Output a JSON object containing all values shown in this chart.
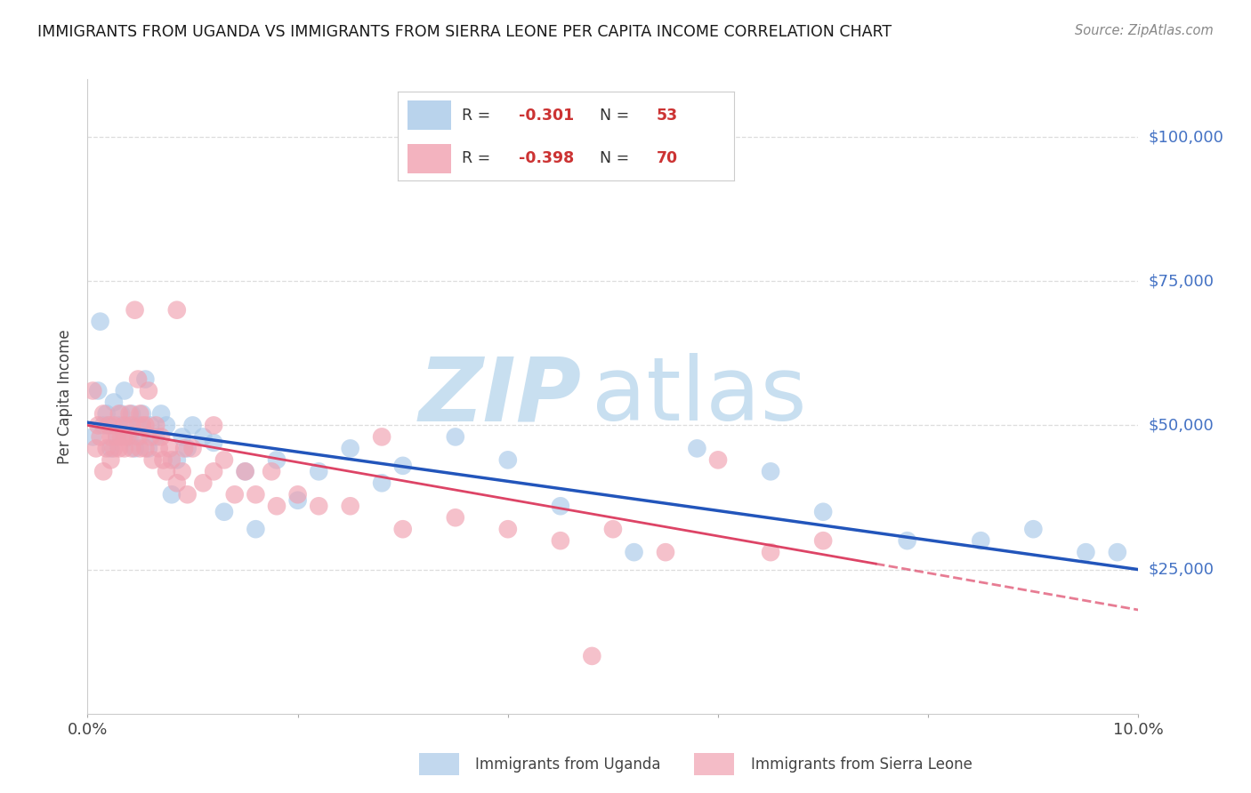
{
  "title": "IMMIGRANTS FROM UGANDA VS IMMIGRANTS FROM SIERRA LEONE PER CAPITA INCOME CORRELATION CHART",
  "source": "Source: ZipAtlas.com",
  "ylabel": "Per Capita Income",
  "y_tick_labels": [
    "$25,000",
    "$50,000",
    "$75,000",
    "$100,000"
  ],
  "y_tick_values": [
    25000,
    50000,
    75000,
    100000
  ],
  "y_axis_color": "#4472c4",
  "xlim": [
    0.0,
    10.0
  ],
  "ylim": [
    0,
    110000
  ],
  "uganda_color": "#a8c8e8",
  "sierra_color": "#f0a0b0",
  "uganda_line_color": "#2255bb",
  "sierra_line_color": "#dd4466",
  "watermark_zip_color": "#c8dff0",
  "watermark_atlas_color": "#c8dff0",
  "background_color": "#ffffff",
  "grid_color": "#dddddd",
  "uganda_x": [
    0.05,
    0.1,
    0.12,
    0.15,
    0.18,
    0.2,
    0.22,
    0.25,
    0.28,
    0.3,
    0.32,
    0.35,
    0.38,
    0.4,
    0.42,
    0.45,
    0.48,
    0.5,
    0.52,
    0.55,
    0.58,
    0.6,
    0.65,
    0.7,
    0.75,
    0.8,
    0.85,
    0.9,
    0.95,
    1.0,
    1.1,
    1.2,
    1.3,
    1.5,
    1.6,
    1.8,
    2.0,
    2.2,
    2.5,
    2.8,
    3.0,
    3.5,
    4.0,
    4.5,
    5.2,
    5.8,
    6.5,
    7.0,
    7.8,
    8.5,
    9.0,
    9.5,
    9.8
  ],
  "uganda_y": [
    48000,
    56000,
    68000,
    50000,
    52000,
    50000,
    46000,
    54000,
    48000,
    50000,
    52000,
    56000,
    50000,
    48000,
    52000,
    46000,
    50000,
    48000,
    52000,
    58000,
    46000,
    50000,
    48000,
    52000,
    50000,
    38000,
    44000,
    48000,
    46000,
    50000,
    48000,
    47000,
    35000,
    42000,
    32000,
    44000,
    37000,
    42000,
    46000,
    40000,
    43000,
    48000,
    44000,
    36000,
    28000,
    46000,
    42000,
    35000,
    30000,
    30000,
    32000,
    28000,
    28000
  ],
  "sierra_x": [
    0.05,
    0.08,
    0.1,
    0.12,
    0.15,
    0.15,
    0.18,
    0.2,
    0.22,
    0.22,
    0.25,
    0.25,
    0.28,
    0.3,
    0.3,
    0.32,
    0.35,
    0.35,
    0.38,
    0.4,
    0.42,
    0.42,
    0.45,
    0.48,
    0.5,
    0.5,
    0.52,
    0.55,
    0.55,
    0.58,
    0.6,
    0.62,
    0.65,
    0.68,
    0.7,
    0.72,
    0.75,
    0.78,
    0.8,
    0.85,
    0.9,
    0.95,
    1.0,
    1.1,
    1.2,
    1.3,
    1.4,
    1.5,
    1.6,
    1.8,
    2.0,
    2.2,
    2.5,
    3.0,
    3.5,
    4.0,
    4.5,
    5.0,
    5.5,
    6.0,
    6.5,
    7.0,
    4.8,
    2.8,
    1.2,
    0.85,
    0.92,
    0.48,
    0.35,
    1.75
  ],
  "sierra_y": [
    56000,
    46000,
    50000,
    48000,
    52000,
    42000,
    46000,
    50000,
    48000,
    44000,
    50000,
    46000,
    48000,
    52000,
    46000,
    48000,
    50000,
    46000,
    48000,
    52000,
    46000,
    50000,
    70000,
    48000,
    52000,
    46000,
    50000,
    46000,
    50000,
    56000,
    48000,
    44000,
    50000,
    46000,
    48000,
    44000,
    42000,
    46000,
    44000,
    40000,
    42000,
    38000,
    46000,
    40000,
    42000,
    44000,
    38000,
    42000,
    38000,
    36000,
    38000,
    36000,
    36000,
    32000,
    34000,
    32000,
    30000,
    32000,
    28000,
    44000,
    28000,
    30000,
    10000,
    48000,
    50000,
    70000,
    46000,
    58000,
    48000,
    42000
  ],
  "uganda_regr_x0": 0.0,
  "uganda_regr_y0": 50500,
  "uganda_regr_x1": 10.0,
  "uganda_regr_y1": 25000,
  "sierra_regr_x0": 0.0,
  "sierra_regr_y0": 50000,
  "sierra_regr_x1": 10.0,
  "sierra_regr_y1": 18000,
  "sierra_solid_end_x": 7.5
}
